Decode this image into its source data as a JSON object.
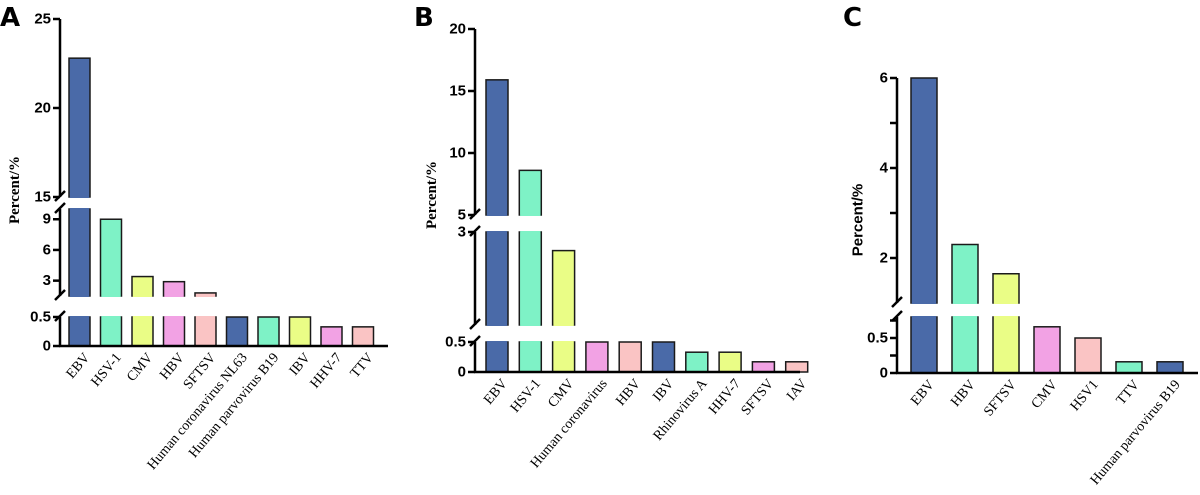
{
  "chart_data": [
    {
      "type": "bar",
      "panel": "A",
      "title": "",
      "xlabel": "",
      "ylabel": "Percent/%",
      "ylabel_style": "serif",
      "broken_axis": true,
      "axis_segments": [
        {
          "range": [
            0,
            0.5
          ],
          "ticks": [
            0,
            0.5
          ],
          "tick_labels": [
            "0",
            "0.5"
          ]
        },
        {
          "range": [
            1.5,
            10
          ],
          "ticks": [
            3,
            6,
            9
          ],
          "tick_labels": [
            "3",
            "6",
            "9"
          ]
        },
        {
          "range": [
            15,
            25
          ],
          "ticks": [
            15,
            20,
            25
          ],
          "tick_labels": [
            "15",
            "20",
            "25"
          ]
        }
      ],
      "ylim": [
        0,
        25
      ],
      "grid": false,
      "legend": "none",
      "categories": [
        "EBV",
        "HSV-1",
        "CMV",
        "HBV",
        "SFTSV",
        "Human coronavirus NL63",
        "Human parvovirus B19",
        "IBV",
        "HHV-7",
        "TTV"
      ],
      "values": [
        22.8,
        9.0,
        3.4,
        2.9,
        1.8,
        0.5,
        0.5,
        0.5,
        0.33,
        0.33
      ],
      "colors": [
        "#4a6aa8",
        "#7ef2c6",
        "#eafd86",
        "#f2a2e4",
        "#fac4c4",
        "#4a6aa8",
        "#7ef2c6",
        "#eafd86",
        "#f2a2e4",
        "#fac4c4"
      ]
    },
    {
      "type": "bar",
      "panel": "B",
      "title": "",
      "xlabel": "",
      "ylabel": "Percent/%",
      "ylabel_style": "serif",
      "broken_axis": true,
      "axis_segments": [
        {
          "range": [
            0,
            0.5
          ],
          "ticks": [
            0,
            0.5
          ],
          "tick_labels": [
            "0",
            "0.5"
          ]
        },
        {
          "range": [
            0.5,
            3
          ],
          "ticks": [
            3
          ],
          "tick_labels": [
            "3"
          ]
        },
        {
          "range": [
            5,
            20
          ],
          "ticks": [
            5,
            10,
            15,
            20
          ],
          "tick_labels": [
            "5",
            "10",
            "15",
            "20"
          ]
        }
      ],
      "ylim": [
        0,
        20
      ],
      "grid": false,
      "legend": "none",
      "categories": [
        "EBV",
        "HSV-1",
        "CMV",
        "Human coronavirus",
        "HBV",
        "IBV",
        "Rhinovirus A",
        "HHV-7",
        "SFTSV",
        "IAV"
      ],
      "values": [
        15.9,
        8.6,
        2.5,
        0.5,
        0.5,
        0.5,
        0.33,
        0.33,
        0.17,
        0.17
      ],
      "colors": [
        "#4a6aa8",
        "#7ef2c6",
        "#eafd86",
        "#f2a2e4",
        "#fac4c4",
        "#4a6aa8",
        "#7ef2c6",
        "#eafd86",
        "#f2a2e4",
        "#fac4c4"
      ]
    },
    {
      "type": "bar",
      "panel": "C",
      "title": "",
      "xlabel": "",
      "ylabel": "Percent/%",
      "ylabel_style": "sans",
      "broken_axis": true,
      "axis_segments": [
        {
          "range": [
            0,
            0.8
          ],
          "ticks": [
            0,
            0.25,
            0.5,
            0.75
          ],
          "tick_labels": [
            "0",
            "",
            "0.5",
            ""
          ]
        },
        {
          "range": [
            1,
            6
          ],
          "ticks": [
            2,
            3,
            4,
            5,
            6
          ],
          "tick_labels": [
            "2",
            "",
            "4",
            "",
            "6"
          ]
        }
      ],
      "ylim": [
        0,
        6
      ],
      "grid": false,
      "legend": "none",
      "categories": [
        "EBV",
        "HBV",
        "SFTSV",
        "CMV",
        "HSV1",
        "TTV",
        "Human parvovirus B19"
      ],
      "values": [
        6.0,
        2.3,
        1.65,
        0.66,
        0.5,
        0.16,
        0.16
      ],
      "colors": [
        "#4a6aa8",
        "#7ef2c6",
        "#eafd86",
        "#f2a2e4",
        "#fac4c4",
        "#7ef2c6",
        "#4a6aa8"
      ]
    }
  ],
  "panel_letters": [
    "A",
    "B",
    "C"
  ]
}
